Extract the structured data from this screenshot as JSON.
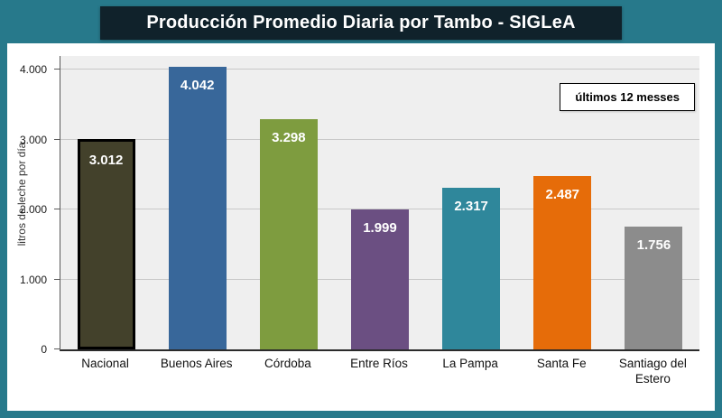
{
  "colors": {
    "frame": "#27798B",
    "title_bg": "#10222B",
    "title_text": "#FFFFFF",
    "panel_bg": "#FFFFFF",
    "plot_bg": "#EFEFEF",
    "grid": "#C8C8C8",
    "value_label": "#FFFFFF"
  },
  "chart_data": {
    "type": "bar",
    "title": "Producción Promedio Diaria por Tambo - SIGLeA",
    "note": "últimos 12 messes",
    "ylabel": "litros de leche por día",
    "xlabel": "",
    "ymax": 4200,
    "ylim": [
      0,
      4200
    ],
    "grid": true,
    "legend_position": "top-right",
    "yticks": [
      {
        "value": 0,
        "label": "0"
      },
      {
        "value": 1000,
        "label": "1.000"
      },
      {
        "value": 2000,
        "label": "2.000"
      },
      {
        "value": 3000,
        "label": "3.000"
      },
      {
        "value": 4000,
        "label": "4.000"
      }
    ],
    "categories": [
      "Nacional",
      "Buenos Aires",
      "Córdoba",
      "Entre Ríos",
      "La Pampa",
      "Santa Fe",
      "Santiago del Estero"
    ],
    "values": [
      3012,
      4042,
      3298,
      1999,
      2317,
      2487,
      1756
    ],
    "value_labels": [
      "3.012",
      "4.042",
      "3.298",
      "1.999",
      "2.317",
      "2.487",
      "1.756"
    ],
    "bar_colors": [
      "#43412B",
      "#38679A",
      "#7E9C3F",
      "#6B4F82",
      "#2F879B",
      "#E66C09",
      "#8C8C8C"
    ],
    "highlight": {
      "index": 0,
      "border": "#000000"
    }
  }
}
